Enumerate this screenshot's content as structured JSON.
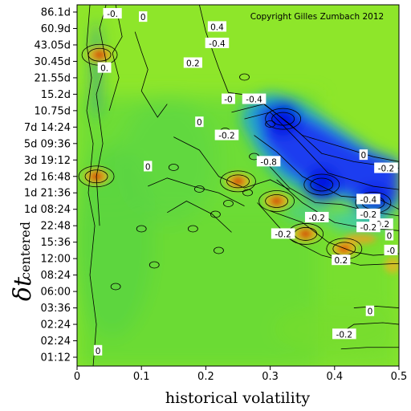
{
  "chart_data": {
    "type": "heatmap",
    "title": "",
    "copyright": "Copyright Gilles Zumbach 2012",
    "xlabel": "historical volatility",
    "ylabel_main": "δt",
    "ylabel_sub": "centered",
    "xlim": [
      0,
      0.5
    ],
    "x_ticks": [
      "0",
      "0.1",
      "0.2",
      "0.3",
      "0.4",
      "0.5"
    ],
    "y_ticks": [
      "86.1d",
      "60.9d",
      "43.05d",
      "30.45d",
      "21.55d",
      "15.2d",
      "10.75d",
      "7d 14:24",
      "5d 09:36",
      "3d 19:12",
      "2d 16:48",
      "1d 21:36",
      "1d 08:24",
      "22:48",
      "15:36",
      "12:00",
      "08:24",
      "06:00",
      "03:36",
      "02:24",
      "02:24",
      "01:12"
    ],
    "colorscale": {
      "min_color": "#0000ff",
      "neutral_color": "#80e020",
      "max_color": "#d03000",
      "background": "#8ee62a"
    },
    "contour_labels": [
      {
        "text": "-0.",
        "x": 0.11,
        "y": 20.9
      },
      {
        "text": "0",
        "x": 0.205,
        "y": 20.7
      },
      {
        "text": "0.4",
        "x": 0.435,
        "y": 20.1
      },
      {
        "text": "-0.4",
        "x": 0.435,
        "y": 19.1
      },
      {
        "text": "0.2",
        "x": 0.36,
        "y": 17.9
      },
      {
        "text": "0.",
        "x": 0.085,
        "y": 17.6
      },
      {
        "text": "-0",
        "x": 0.47,
        "y": 15.7
      },
      {
        "text": "-0.4",
        "x": 0.55,
        "y": 15.7
      },
      {
        "text": "0",
        "x": 0.38,
        "y": 14.3
      },
      {
        "text": "-0.2",
        "x": 0.465,
        "y": 13.5
      },
      {
        "text": "-0.8",
        "x": 0.595,
        "y": 11.9
      },
      {
        "text": "0",
        "x": 0.89,
        "y": 12.3
      },
      {
        "text": "-0.2",
        "x": 0.96,
        "y": 11.5
      },
      {
        "text": "0",
        "x": 0.22,
        "y": 11.6
      },
      {
        "text": "-0.4",
        "x": 0.905,
        "y": 9.6
      },
      {
        "text": "-0.2",
        "x": 0.745,
        "y": 8.5
      },
      {
        "text": "-0.2",
        "x": 0.905,
        "y": 8.7
      },
      {
        "text": "-0.2",
        "x": 0.64,
        "y": 7.5
      },
      {
        "text": "-0.2",
        "x": 0.945,
        "y": 8.1
      },
      {
        "text": "-0.2",
        "x": 0.905,
        "y": 7.9
      },
      {
        "text": "0",
        "x": 0.97,
        "y": 7.4
      },
      {
        "text": "0.2",
        "x": 0.82,
        "y": 5.9
      },
      {
        "text": "-0",
        "x": 0.975,
        "y": 6.5
      },
      {
        "text": "0",
        "x": 0.91,
        "y": 2.8
      },
      {
        "text": "-0.2",
        "x": 0.83,
        "y": 1.4
      },
      {
        "text": "0",
        "x": 0.065,
        "y": 0.4
      }
    ],
    "hotspots": [
      {
        "x": 0.31,
        "y_index": 9.5,
        "value": 0.6
      },
      {
        "x": 0.355,
        "y_index": 7.5,
        "value": 0.6
      },
      {
        "x": 0.25,
        "y_index": 10.7,
        "value": 0.5
      },
      {
        "x": 0.415,
        "y_index": 6.6,
        "value": 0.4
      },
      {
        "x": 0.03,
        "y_index": 11.0,
        "value": 0.5
      },
      {
        "x": 0.035,
        "y_index": 18.4,
        "value": 0.6
      }
    ],
    "coldspots": [
      {
        "x": 0.38,
        "y_index": 10.5,
        "value": -0.9
      },
      {
        "x": 0.32,
        "y_index": 14.5,
        "value": -0.9
      },
      {
        "x": 0.46,
        "y_index": 9.4,
        "value": -0.8
      }
    ]
  }
}
